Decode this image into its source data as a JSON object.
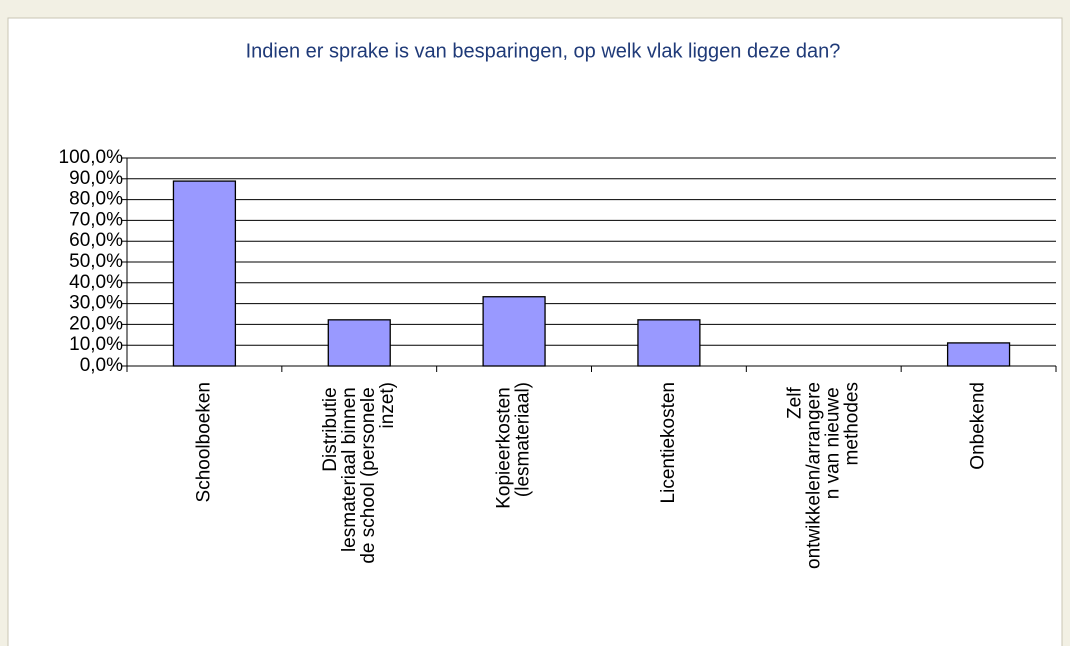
{
  "chart_data": {
    "type": "bar",
    "title": "Indien er sprake is van besparingen, op welk vlak liggen deze dan?",
    "categories": [
      "Schoolboeken",
      "Distributie lesmateriaal binnen de school (personele inzet)",
      "Kopieerkosten (lesmateriaal)",
      "Licentiekosten",
      "Zelf ontwikkelen/arrangeren van nieuwe methodes",
      "Onbekend"
    ],
    "values": [
      88.9,
      22.2,
      33.3,
      22.2,
      0,
      11.1
    ],
    "color": "#9999ff",
    "ylim": [
      0,
      100
    ],
    "yticks": [
      {
        "value": 0,
        "label": "0,0%"
      },
      {
        "value": 10,
        "label": "10,0%"
      },
      {
        "value": 20,
        "label": "20,0%"
      },
      {
        "value": 30,
        "label": "30,0%"
      },
      {
        "value": 40,
        "label": "40,0%"
      },
      {
        "value": 50,
        "label": "50,0%"
      },
      {
        "value": 60,
        "label": "60,0%"
      },
      {
        "value": 70,
        "label": "70,0%"
      },
      {
        "value": 80,
        "label": "80,0%"
      },
      {
        "value": 90,
        "label": "90,0%"
      },
      {
        "value": 100,
        "label": "100,0%"
      }
    ],
    "grid": true
  }
}
